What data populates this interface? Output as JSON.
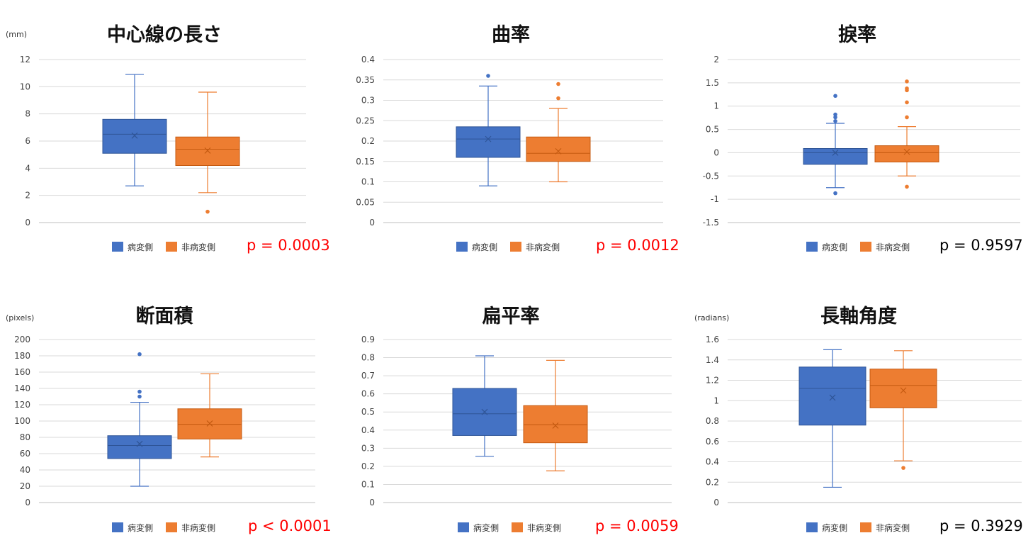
{
  "chart_data": [
    {
      "type": "box",
      "title": "中心線の長さ",
      "unit_label": "(mm)",
      "ylim": [
        0,
        12
      ],
      "yticks": [
        "0",
        "2",
        "4",
        "6",
        "8",
        "10",
        "12"
      ],
      "grid": true,
      "legend_position": "bottom",
      "series": [
        {
          "name": "病変側",
          "color": "#4472C4",
          "whisker_low": 2.7,
          "q1": 5.1,
          "median": 6.5,
          "q3": 7.6,
          "whisker_high": 10.9,
          "mean": 6.4,
          "outliers": []
        },
        {
          "name": "非病変側",
          "color": "#ED7D31",
          "whisker_low": 2.2,
          "q1": 4.2,
          "median": 5.4,
          "q3": 6.3,
          "whisker_high": 9.6,
          "mean": 5.3,
          "outliers": [
            0.8
          ]
        }
      ],
      "p_value": "p = 0.0003",
      "p_color": "#FF0000"
    },
    {
      "type": "box",
      "title": "曲率",
      "unit_label": "",
      "ylim": [
        0,
        0.4
      ],
      "yticks": [
        "0",
        "0.05",
        "0.1",
        "0.15",
        "0.2",
        "0.25",
        "0.3",
        "0.35",
        "0.4"
      ],
      "grid": true,
      "legend_position": "bottom",
      "series": [
        {
          "name": "病変側",
          "color": "#4472C4",
          "whisker_low": 0.09,
          "q1": 0.16,
          "median": 0.205,
          "q3": 0.235,
          "whisker_high": 0.335,
          "mean": 0.205,
          "outliers": [
            0.36
          ]
        },
        {
          "name": "非病変側",
          "color": "#ED7D31",
          "whisker_low": 0.1,
          "q1": 0.15,
          "median": 0.17,
          "q3": 0.21,
          "whisker_high": 0.28,
          "mean": 0.175,
          "outliers": [
            0.305,
            0.34
          ]
        }
      ],
      "p_value": "p = 0.0012",
      "p_color": "#FF0000"
    },
    {
      "type": "box",
      "title": "捩率",
      "unit_label": "",
      "ylim": [
        -1.5,
        2
      ],
      "yticks": [
        "-1.5",
        "-1",
        "-0.5",
        "0",
        "0.5",
        "1",
        "1.5",
        "2"
      ],
      "grid": true,
      "legend_position": "bottom",
      "series": [
        {
          "name": "病変側",
          "color": "#4472C4",
          "whisker_low": -0.75,
          "q1": -0.25,
          "median": 0.0,
          "q3": 0.09,
          "whisker_high": 0.63,
          "mean": 0.0,
          "outliers": [
            -0.87,
            0.68,
            0.76,
            0.82,
            1.22
          ]
        },
        {
          "name": "非病変側",
          "color": "#ED7D31",
          "whisker_low": -0.5,
          "q1": -0.2,
          "median": 0.0,
          "q3": 0.15,
          "whisker_high": 0.56,
          "mean": 0.02,
          "outliers": [
            -0.73,
            0.76,
            1.08,
            1.34,
            1.38,
            1.53
          ]
        }
      ],
      "p_value": "p = 0.9597",
      "p_color": "#000000"
    },
    {
      "type": "box",
      "title": "断面積",
      "unit_label": "(pixels)",
      "ylim": [
        0,
        200
      ],
      "yticks": [
        "0",
        "20",
        "40",
        "60",
        "80",
        "100",
        "120",
        "140",
        "160",
        "180",
        "200"
      ],
      "grid": true,
      "legend_position": "bottom",
      "series": [
        {
          "name": "病変側",
          "color": "#4472C4",
          "whisker_low": 20,
          "q1": 54,
          "median": 70,
          "q3": 82,
          "whisker_high": 123,
          "mean": 72,
          "outliers": [
            130,
            136,
            182
          ]
        },
        {
          "name": "非病変側",
          "color": "#ED7D31",
          "whisker_low": 56,
          "q1": 78,
          "median": 96,
          "q3": 115,
          "whisker_high": 158,
          "mean": 97,
          "outliers": []
        }
      ],
      "p_value": "p < 0.0001",
      "p_color": "#FF0000"
    },
    {
      "type": "box",
      "title": "扁平率",
      "unit_label": "",
      "ylim": [
        0,
        0.9
      ],
      "yticks": [
        "0",
        "0.1",
        "0.2",
        "0.3",
        "0.4",
        "0.5",
        "0.6",
        "0.7",
        "0.8",
        "0.9"
      ],
      "grid": true,
      "legend_position": "bottom",
      "series": [
        {
          "name": "病変側",
          "color": "#4472C4",
          "whisker_low": 0.255,
          "q1": 0.37,
          "median": 0.49,
          "q3": 0.63,
          "whisker_high": 0.81,
          "mean": 0.5,
          "outliers": []
        },
        {
          "name": "非病変側",
          "color": "#ED7D31",
          "whisker_low": 0.175,
          "q1": 0.33,
          "median": 0.43,
          "q3": 0.535,
          "whisker_high": 0.785,
          "mean": 0.425,
          "outliers": []
        }
      ],
      "p_value": "p = 0.0059",
      "p_color": "#FF0000"
    },
    {
      "type": "box",
      "title": "長軸角度",
      "unit_label": "(radians)",
      "ylim": [
        0,
        1.6
      ],
      "yticks": [
        "0",
        "0.2",
        "0.4",
        "0.6",
        "0.8",
        "1",
        "1.2",
        "1.4",
        "1.6"
      ],
      "grid": true,
      "legend_position": "bottom",
      "series": [
        {
          "name": "病変側",
          "color": "#4472C4",
          "whisker_low": 0.15,
          "q1": 0.76,
          "median": 1.12,
          "q3": 1.33,
          "whisker_high": 1.5,
          "mean": 1.03,
          "outliers": []
        },
        {
          "name": "非病変側",
          "color": "#ED7D31",
          "whisker_low": 0.41,
          "q1": 0.93,
          "median": 1.15,
          "q3": 1.31,
          "whisker_high": 1.49,
          "mean": 1.1,
          "outliers": [
            0.34
          ]
        }
      ],
      "p_value": "p = 0.3929",
      "p_color": "#000000"
    }
  ]
}
